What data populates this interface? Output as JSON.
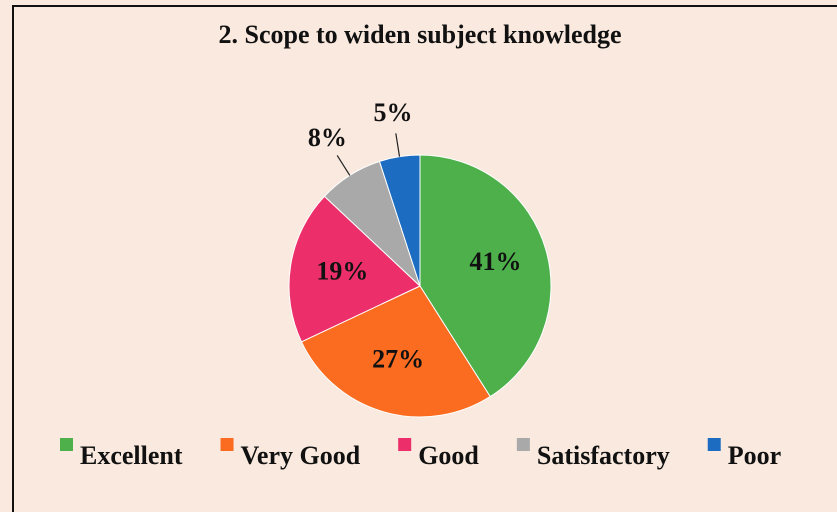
{
  "chart_data": {
    "type": "pie",
    "title": "2. Scope to widen subject knowledge",
    "categories": [
      "Excellent",
      "Very Good",
      "Good",
      "Satisfactory",
      "Poor"
    ],
    "values": [
      41,
      27,
      19,
      8,
      5
    ],
    "value_labels": [
      "41%",
      "27%",
      "19%",
      "8%",
      "5%"
    ],
    "colors": [
      "#4db04b",
      "#fb6b20",
      "#ec2f6b",
      "#a9a9a9",
      "#1c6dc1"
    ],
    "legend": "bottom"
  }
}
